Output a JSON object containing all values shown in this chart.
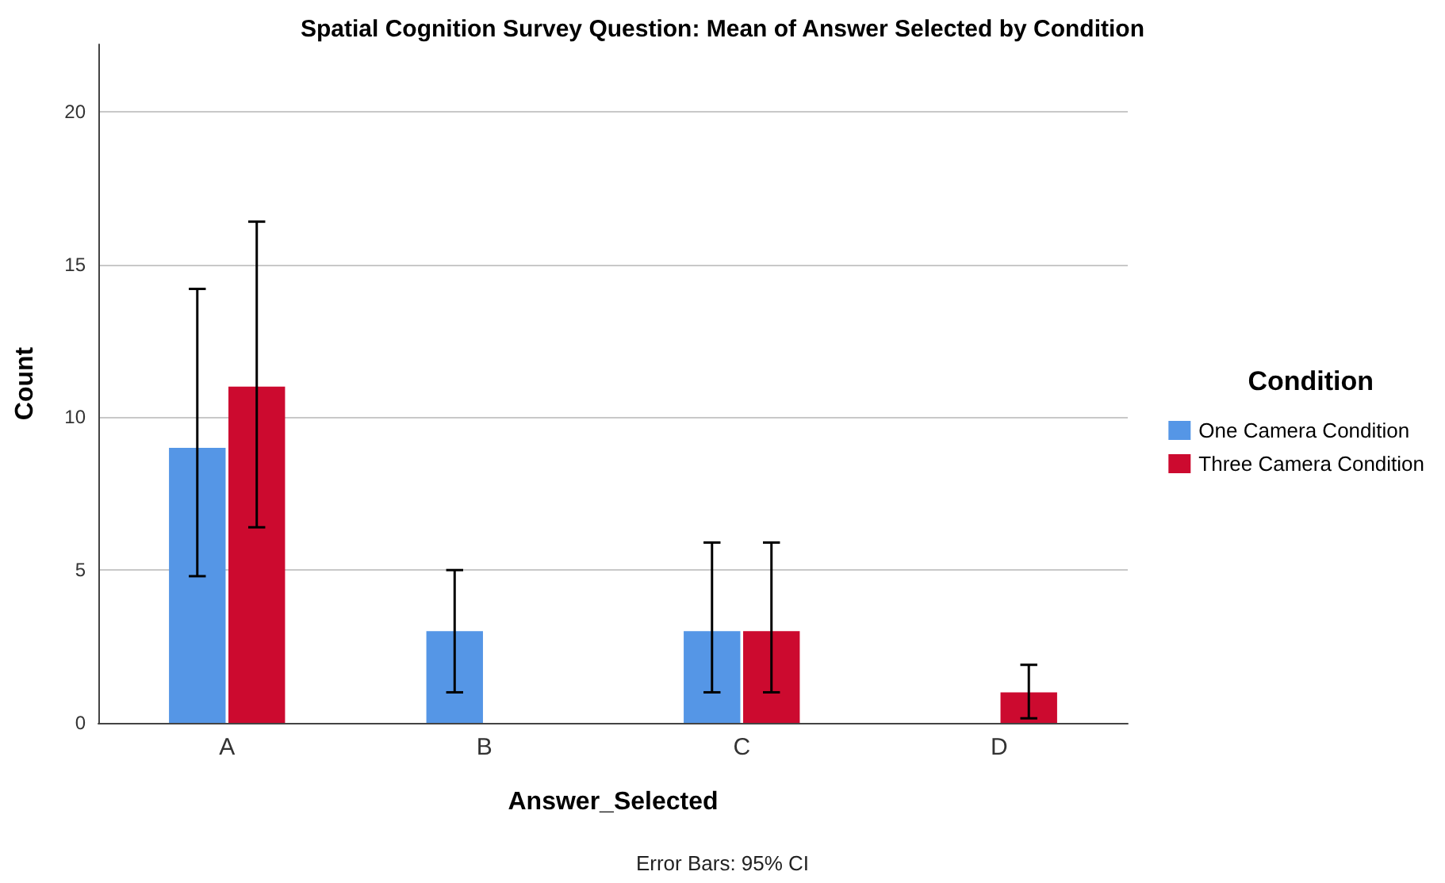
{
  "chart_data": {
    "type": "bar",
    "title": "Spatial Cognition Survey Question: Mean of Answer Selected by Condition",
    "xlabel": "Answer_Selected",
    "ylabel": "Count",
    "legend_title": "Condition",
    "annotations": [
      "Error Bars: 95% CI"
    ],
    "categories": [
      "A",
      "B",
      "C",
      "D"
    ],
    "series": [
      {
        "name": "One Camera Condition",
        "color": "#5596e6",
        "values": [
          9,
          3,
          3,
          0
        ],
        "errors": [
          [
            4.8,
            14.2
          ],
          [
            1.0,
            5.0
          ],
          [
            1.0,
            5.9
          ],
          null
        ]
      },
      {
        "name": "Three Camera Condition",
        "color": "#cc0a2f",
        "values": [
          11,
          0,
          3,
          1
        ],
        "errors": [
          [
            6.4,
            16.4
          ],
          null,
          [
            1.0,
            5.9
          ],
          [
            0.15,
            1.9
          ]
        ]
      }
    ],
    "ylim": [
      0,
      22.2
    ],
    "yticks": [
      0,
      5,
      10,
      15,
      20
    ],
    "grid": "y",
    "legend": "right"
  }
}
